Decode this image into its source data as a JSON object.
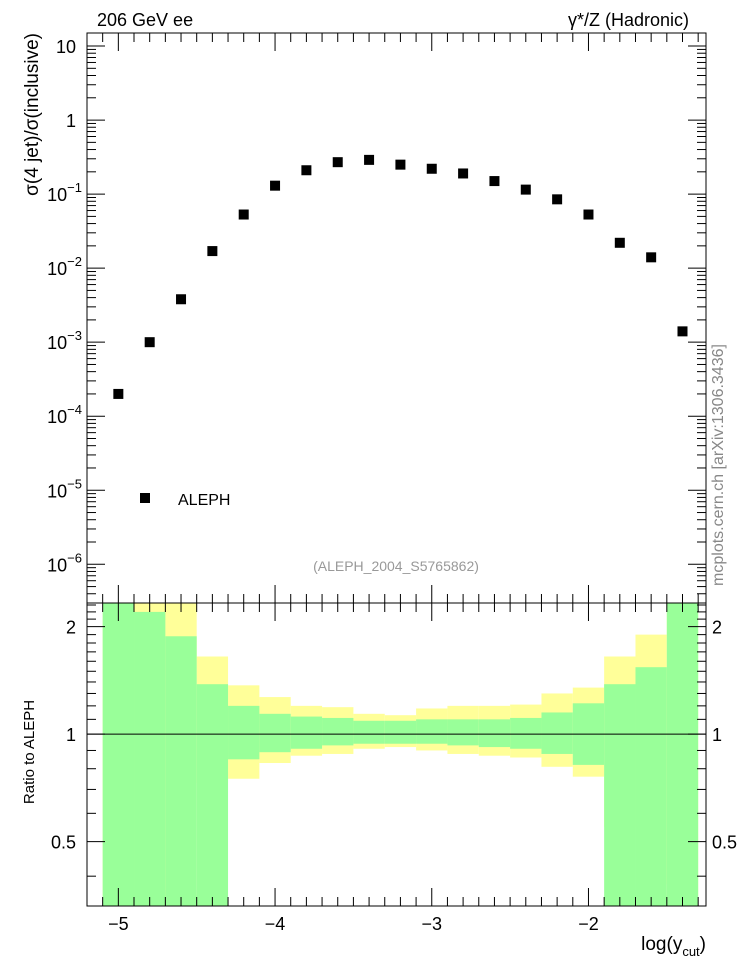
{
  "header": {
    "left_label": "206 GeV ee",
    "right_label": "γ*/Z (Hadronic)"
  },
  "watermark": "mcplots.cern.ch [arXiv:1306.3436]",
  "analysis_label": "(ALEPH_2004_S5765862)",
  "chart_data": [
    {
      "type": "scatter",
      "title": "",
      "ylabel": "σ(4 jet)/σ(inclusive)",
      "yscale": "log",
      "ylim": [
        3e-07,
        15
      ],
      "xlim": [
        -5.2,
        -1.25
      ],
      "legend": {
        "position": "bottom-left",
        "entries": [
          "ALEPH"
        ]
      },
      "y_ticks": [
        {
          "base": "10",
          "exp": "",
          "value": 10
        },
        {
          "base": "1",
          "exp": "",
          "value": 1
        },
        {
          "base": "10",
          "exp": "−1",
          "value": 0.1
        },
        {
          "base": "10",
          "exp": "−2",
          "value": 0.01
        },
        {
          "base": "10",
          "exp": "−3",
          "value": 0.001
        },
        {
          "base": "10",
          "exp": "−4",
          "value": 0.0001
        },
        {
          "base": "10",
          "exp": "−5",
          "value": 1e-05
        },
        {
          "base": "10",
          "exp": "−6",
          "value": 1e-06
        }
      ],
      "series": [
        {
          "name": "ALEPH",
          "x": [
            -5.0,
            -4.8,
            -4.6,
            -4.4,
            -4.2,
            -4.0,
            -3.8,
            -3.6,
            -3.4,
            -3.2,
            -3.0,
            -2.8,
            -2.6,
            -2.4,
            -2.2,
            -2.0,
            -1.8,
            -1.6,
            -1.4
          ],
          "values": [
            0.0002,
            0.001,
            0.0038,
            0.017,
            0.053,
            0.13,
            0.21,
            0.27,
            0.29,
            0.25,
            0.22,
            0.19,
            0.15,
            0.115,
            0.085,
            0.053,
            0.022,
            0.014,
            0.0014
          ]
        }
      ]
    },
    {
      "type": "bar",
      "title": "",
      "ylabel": "Ratio to ALEPH",
      "xlabel": "log(y",
      "xlabel_sub": "cut",
      "xlabel_close": ")",
      "ylim": [
        0.33,
        2.33
      ],
      "xlim": [
        -5.2,
        -1.25
      ],
      "reference_line": 1,
      "x_ticks": [
        "−5",
        "−4",
        "−3",
        "−2"
      ],
      "x_tick_values": [
        -5,
        -4,
        -3,
        -2
      ],
      "y_ticks": [
        "2",
        "1",
        "0.5"
      ],
      "y_tick_values": [
        2,
        1,
        0.5
      ],
      "bin_edges": [
        -5.1,
        -4.9,
        -4.7,
        -4.5,
        -4.3,
        -4.1,
        -3.9,
        -3.7,
        -3.5,
        -3.3,
        -3.1,
        -2.9,
        -2.7,
        -2.5,
        -2.3,
        -2.1,
        -1.9,
        -1.7,
        -1.5,
        -1.3
      ],
      "series": [
        {
          "name": "stat band",
          "upper": [
            2.4,
            2.2,
            1.88,
            1.38,
            1.2,
            1.14,
            1.12,
            1.11,
            1.09,
            1.09,
            1.1,
            1.1,
            1.1,
            1.11,
            1.15,
            1.22,
            1.38,
            1.54,
            2.4
          ],
          "lower": [
            0.2,
            0.2,
            0.2,
            0.2,
            0.85,
            0.89,
            0.91,
            0.93,
            0.94,
            0.94,
            0.94,
            0.93,
            0.92,
            0.91,
            0.88,
            0.82,
            0.2,
            0.2,
            0.2
          ]
        },
        {
          "name": "total band",
          "upper": [
            2.4,
            2.4,
            2.4,
            1.65,
            1.37,
            1.27,
            1.2,
            1.19,
            1.14,
            1.13,
            1.18,
            1.2,
            1.2,
            1.21,
            1.3,
            1.35,
            1.65,
            1.9,
            2.4
          ],
          "lower": [
            0.2,
            0.2,
            0.2,
            0.73,
            0.75,
            0.83,
            0.87,
            0.88,
            0.91,
            0.92,
            0.9,
            0.88,
            0.87,
            0.86,
            0.81,
            0.76,
            0.55,
            0.38,
            0.2
          ]
        }
      ]
    }
  ]
}
